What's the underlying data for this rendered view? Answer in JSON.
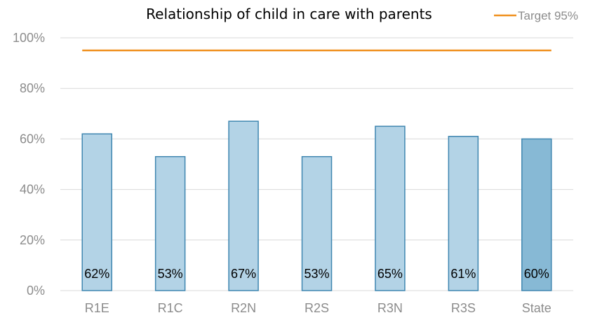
{
  "chart_data": {
    "type": "bar",
    "title": "Relationship of child in care with parents",
    "categories": [
      "R1E",
      "R1C",
      "R2N",
      "R2S",
      "R3N",
      "R3S",
      "State"
    ],
    "values": [
      62,
      53,
      67,
      53,
      65,
      61,
      60
    ],
    "data_labels": [
      "62%",
      "53%",
      "67%",
      "53%",
      "65%",
      "61%",
      "60%"
    ],
    "ylim": [
      0,
      100
    ],
    "yticks": [
      0,
      20,
      40,
      60,
      80,
      100
    ],
    "ytick_labels": [
      "0%",
      "20%",
      "40%",
      "60%",
      "80%",
      "100%"
    ],
    "grid": true,
    "legend_position": "top-right",
    "target": {
      "name": "Target 95%",
      "value": 95,
      "color": "#f0901e"
    },
    "colors": {
      "bar_fill": "#b3d3e6",
      "bar_stroke": "#3f86b0",
      "state_fill": "#87b9d5",
      "grid": "#d9d9d9"
    }
  }
}
